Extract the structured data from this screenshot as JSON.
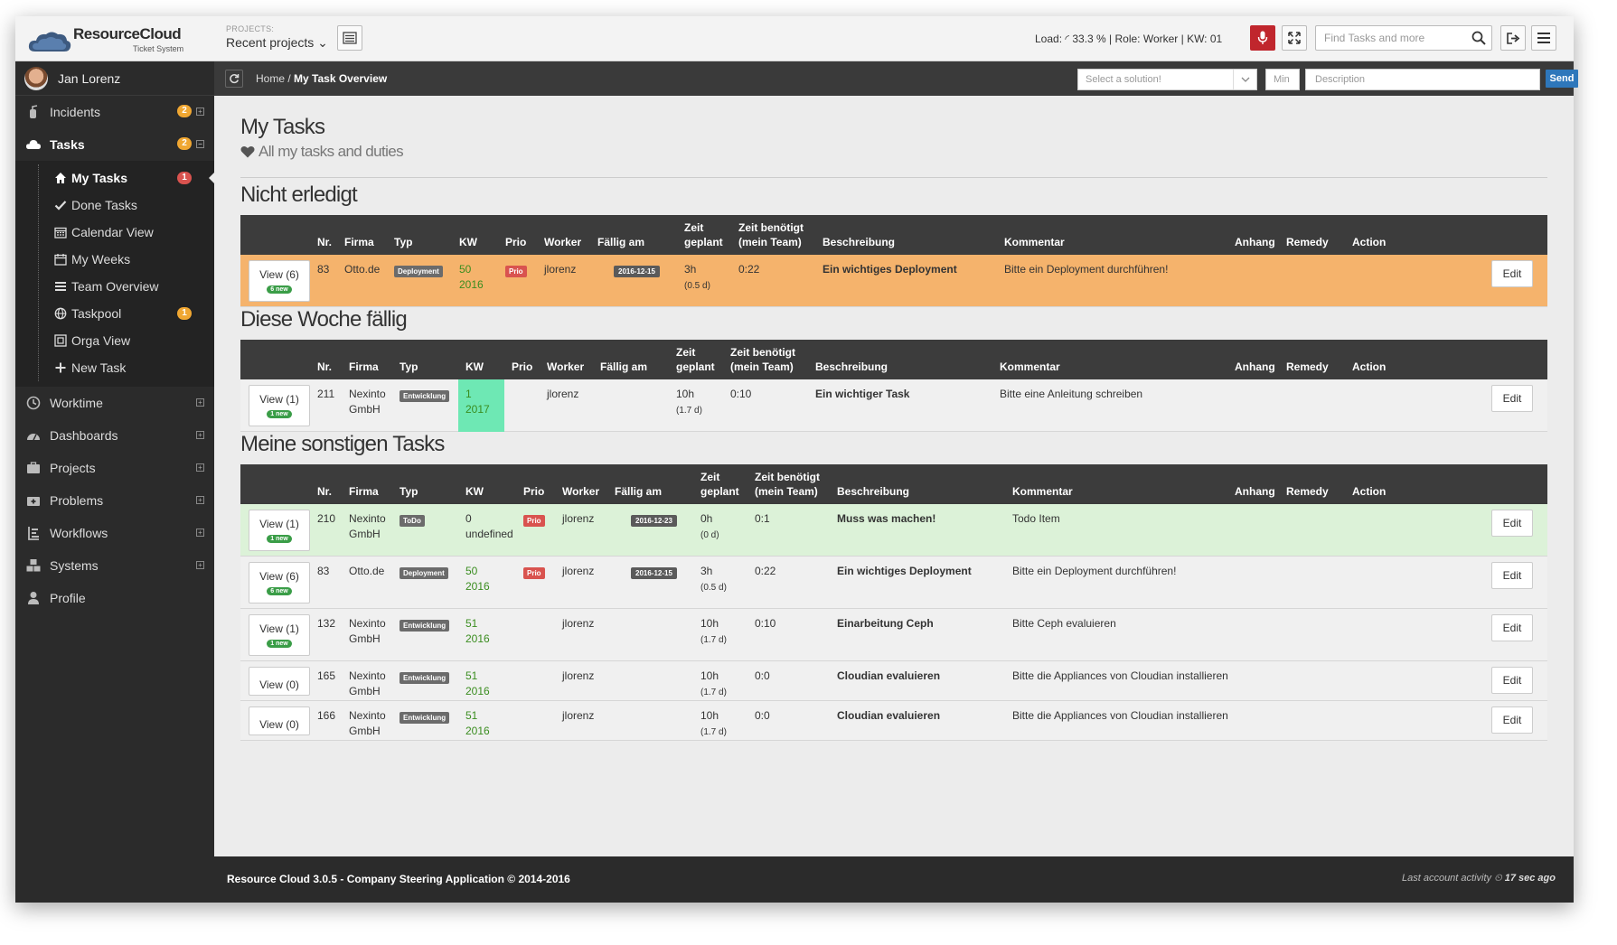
{
  "header": {
    "brand": "ResourceCloud",
    "brand_sub": "Ticket System",
    "projects_label": "PROJECTS:",
    "projects_value": "Recent projects ⌄",
    "load_text": "Load: ◜ 33.3 % | Role: Worker | KW: 01",
    "search_placeholder": "Find Tasks and more"
  },
  "sidebar": {
    "user": "Jan Lorenz",
    "items": [
      {
        "label": "Incidents",
        "badge": "2",
        "icon": "fire-extinguisher-icon"
      },
      {
        "label": "Tasks",
        "badge": "2",
        "icon": "cloud-icon"
      },
      {
        "label": "Worktime",
        "icon": "clock-icon"
      },
      {
        "label": "Dashboards",
        "icon": "dashboard-icon"
      },
      {
        "label": "Projects",
        "icon": "briefcase-icon"
      },
      {
        "label": "Problems",
        "icon": "medkit-icon"
      },
      {
        "label": "Workflows",
        "icon": "workflow-icon"
      },
      {
        "label": "Systems",
        "icon": "cubes-icon"
      },
      {
        "label": "Profile",
        "icon": "user-icon"
      }
    ],
    "sub_items": [
      {
        "label": "My Tasks",
        "badge": "1",
        "icon": "home-icon"
      },
      {
        "label": "Done Tasks",
        "icon": "check-icon"
      },
      {
        "label": "Calendar View",
        "icon": "calendar-icon"
      },
      {
        "label": "My Weeks",
        "icon": "calendar-week-icon"
      },
      {
        "label": "Team Overview",
        "icon": "list-icon"
      },
      {
        "label": "Taskpool",
        "badge": "1",
        "icon": "globe-icon"
      },
      {
        "label": "Orga View",
        "icon": "sitemap-icon"
      },
      {
        "label": "New Task",
        "icon": "plus-icon"
      }
    ]
  },
  "crumb": {
    "home": "Home /",
    "current": "My Task Overview",
    "solution_placeholder": "Select a solution!",
    "min_placeholder": "Min",
    "desc_placeholder": "Description",
    "send": "Send"
  },
  "page": {
    "title": "My Tasks",
    "subtitle": "All my tasks and duties"
  },
  "columns": {
    "nr": "Nr.",
    "firma": "Firma",
    "typ": "Typ",
    "kw": "KW",
    "prio": "Prio",
    "worker": "Worker",
    "faellig": "Fällig am",
    "zeit1": "Zeit",
    "zeit2": "geplant",
    "zb1": "Zeit benötigt",
    "zb2": "(mein Team)",
    "beschreibung": "Beschreibung",
    "kommentar": "Kommentar",
    "anhang": "Anhang",
    "remedy": "Remedy",
    "action": "Action"
  },
  "sections": [
    {
      "title": "Nicht erledigt",
      "rows": [
        {
          "view": "View (6)",
          "new": "6 new",
          "nr": "83",
          "firma1": "Otto.de",
          "firma2": "",
          "typ": "Deployment",
          "kw1": "50",
          "kw2": "2016",
          "prio": "Prio",
          "worker": "jlorenz",
          "faellig": "2016-12-15",
          "zeit": "3h",
          "zeit_d": "(0.5 d)",
          "zb": "0:22",
          "beschreibung": "Ein wichtiges Deployment",
          "kommentar": "Bitte ein Deployment durchführen!",
          "edit": "Edit"
        }
      ]
    },
    {
      "title": "Diese Woche fällig",
      "rows": [
        {
          "view": "View (1)",
          "new": "1 new",
          "nr": "211",
          "firma1": "Nexinto",
          "firma2": "GmbH",
          "typ": "Entwicklung",
          "kw1": "1",
          "kw2": "2017",
          "prio": "",
          "worker": "jlorenz",
          "faellig": "",
          "zeit": "10h",
          "zeit_d": "(1.7 d)",
          "zb": "0:10",
          "beschreibung": "Ein wichtiger Task",
          "kommentar": "Bitte eine Anleitung schreiben",
          "edit": "Edit"
        }
      ]
    },
    {
      "title": "Meine sonstigen Tasks",
      "rows": [
        {
          "view": "View (1)",
          "new": "1 new",
          "nr": "210",
          "firma1": "Nexinto",
          "firma2": "GmbH",
          "typ": "ToDo",
          "kw1": "0",
          "kw2": "undefined",
          "prio": "Prio",
          "worker": "jlorenz",
          "faellig": "2016-12-23",
          "zeit": "0h",
          "zeit_d": "(0 d)",
          "zb": "0:1",
          "beschreibung": "Muss was machen!",
          "kommentar": "Todo Item",
          "edit": "Edit"
        },
        {
          "view": "View (6)",
          "new": "6 new",
          "nr": "83",
          "firma1": "Otto.de",
          "firma2": "",
          "typ": "Deployment",
          "kw1": "50",
          "kw2": "2016",
          "prio": "Prio",
          "worker": "jlorenz",
          "faellig": "2016-12-15",
          "zeit": "3h",
          "zeit_d": "(0.5 d)",
          "zb": "0:22",
          "beschreibung": "Ein wichtiges Deployment",
          "kommentar": "Bitte ein Deployment durchführen!",
          "edit": "Edit"
        },
        {
          "view": "View (1)",
          "new": "1 new",
          "nr": "132",
          "firma1": "Nexinto",
          "firma2": "GmbH",
          "typ": "Entwicklung",
          "kw1": "51",
          "kw2": "2016",
          "prio": "",
          "worker": "jlorenz",
          "faellig": "",
          "zeit": "10h",
          "zeit_d": "(1.7 d)",
          "zb": "0:10",
          "beschreibung": "Einarbeitung Ceph",
          "kommentar": "Bitte Ceph evaluieren",
          "edit": "Edit"
        },
        {
          "view": "View (0)",
          "new": "",
          "nr": "165",
          "firma1": "Nexinto",
          "firma2": "GmbH",
          "typ": "Entwicklung",
          "kw1": "51",
          "kw2": "2016",
          "prio": "",
          "worker": "jlorenz",
          "faellig": "",
          "zeit": "10h",
          "zeit_d": "(1.7 d)",
          "zb": "0:0",
          "beschreibung": "Cloudian evaluieren",
          "kommentar": "Bitte die Appliances von Cloudian installieren",
          "edit": "Edit"
        },
        {
          "view": "View (0)",
          "new": "",
          "nr": "166",
          "firma1": "Nexinto",
          "firma2": "GmbH",
          "typ": "Entwicklung",
          "kw1": "51",
          "kw2": "2016",
          "prio": "",
          "worker": "jlorenz",
          "faellig": "",
          "zeit": "10h",
          "zeit_d": "(1.7 d)",
          "zb": "0:0",
          "beschreibung": "Cloudian evaluieren",
          "kommentar": "Bitte die Appliances von Cloudian installieren",
          "edit": "Edit"
        }
      ]
    }
  ],
  "footer": {
    "left": "Resource Cloud 3.0.5 - Company Steering Application © 2014-2016",
    "right_label": "Last account activity ⏲",
    "right_value": "17 sec ago"
  },
  "colors": {
    "accent": "#2e77bb",
    "sidebar": "#2b2b2b",
    "warning_row": "#f5b36c",
    "success_row": "#dcf2d8",
    "kw_highlight": "#6ee8b4",
    "prio": "#d9534f"
  }
}
